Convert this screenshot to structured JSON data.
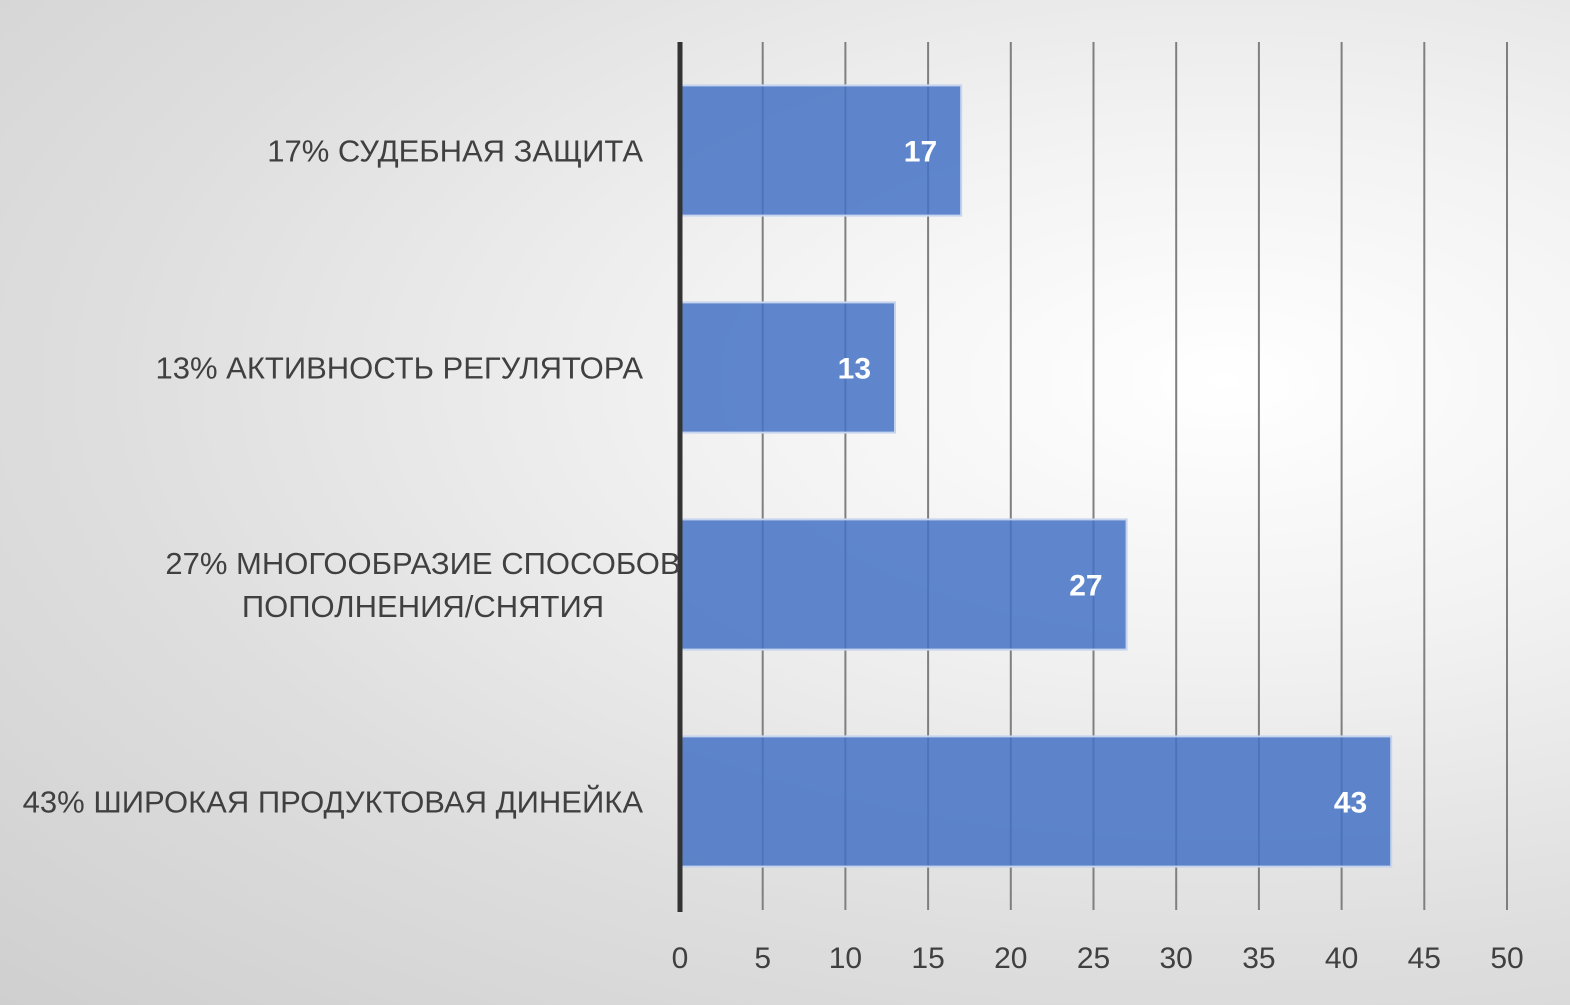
{
  "chart_data": {
    "type": "bar",
    "orientation": "horizontal",
    "categories": [
      "17% СУДЕБНАЯ ЗАЩИТА",
      "13% АКТИВНОСТЬ РЕГУЛЯТОРА",
      "27% МНОГООБРАЗИЕ СПОСОБОВ ПОПОЛНЕНИЯ/СНЯТИЯ",
      "43% ШИРОКАЯ ПРОДУКТОВАЯ ДИНЕЙКА"
    ],
    "category_lines": [
      [
        "17% СУДЕБНАЯ ЗАЩИТА"
      ],
      [
        "13% АКТИВНОСТЬ РЕГУЛЯТОРА"
      ],
      [
        "27% МНОГООБРАЗИЕ СПОСОБОВ",
        "ПОПОЛНЕНИЯ/СНЯТИЯ"
      ],
      [
        "43% ШИРОКАЯ ПРОДУКТОВАЯ ДИНЕЙКА"
      ]
    ],
    "values": [
      17,
      13,
      27,
      43
    ],
    "data_labels": [
      "17",
      "13",
      "27",
      "43"
    ],
    "xlim": [
      0,
      50
    ],
    "x_ticks": [
      0,
      5,
      10,
      15,
      20,
      25,
      30,
      35,
      40,
      45,
      50
    ],
    "x_tick_labels": [
      "0",
      "5",
      "10",
      "15",
      "20",
      "25",
      "30",
      "35",
      "40",
      "45",
      "50"
    ],
    "title": "",
    "xlabel": "",
    "ylabel": "",
    "grid": "vertical",
    "legend": "none",
    "bar_color": "#4472c4",
    "bar_edge_color": "#c6d4ee",
    "axis_color": "#333333",
    "grid_color": "#7f7f7f"
  }
}
